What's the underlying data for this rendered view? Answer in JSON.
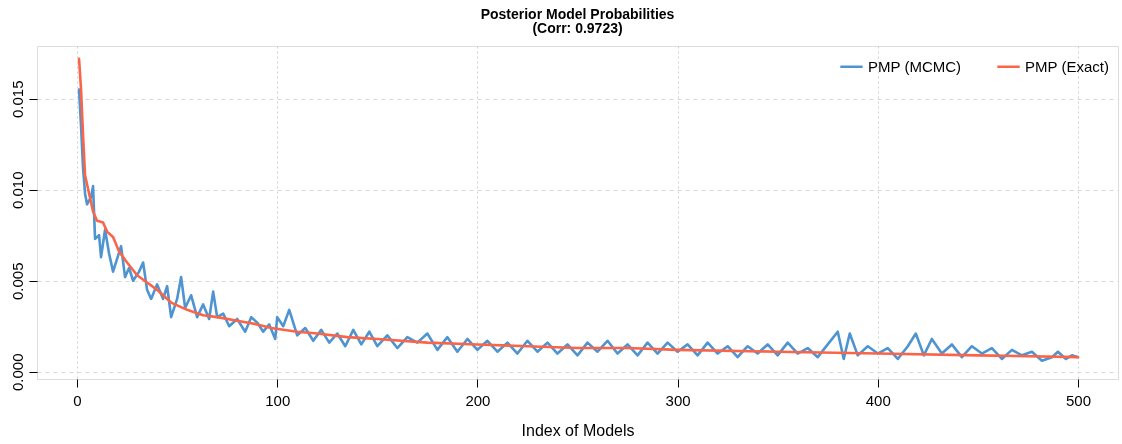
{
  "chart_data": {
    "type": "line",
    "title": "Posterior Model Probabilities",
    "subtitle": "(Corr: 0.9723)",
    "xlabel": "Index of Models",
    "xlim": [
      -20,
      520
    ],
    "xticks": [
      0,
      100,
      200,
      300,
      400,
      500
    ],
    "ylim": [
      -0.0004,
      0.0179
    ],
    "yticks": [
      {
        "value": 0,
        "label": "0.000"
      },
      0.005,
      {
        "value": 0.01,
        "label": "0.010"
      },
      0.015
    ],
    "grid": true,
    "legend": "top right",
    "line_style": "solid",
    "marker": "none",
    "series": [
      {
        "name": "PMP (MCMC)",
        "color": "#4e94d0",
        "x": [
          1,
          2,
          3,
          4,
          5,
          7,
          8,
          9,
          11,
          12,
          14,
          16,
          18,
          20,
          22,
          24,
          26,
          28,
          31,
          33,
          35,
          37,
          40,
          43,
          45,
          47,
          50,
          52,
          54,
          57,
          60,
          63,
          66,
          68,
          70,
          73,
          76,
          80,
          84,
          87,
          90,
          93,
          96,
          99,
          100,
          103,
          106,
          110,
          114,
          118,
          122,
          126,
          130,
          134,
          138,
          142,
          146,
          150,
          155,
          160,
          165,
          170,
          175,
          180,
          185,
          190,
          195,
          200,
          205,
          210,
          215,
          220,
          225,
          230,
          235,
          240,
          245,
          250,
          255,
          260,
          265,
          270,
          275,
          280,
          285,
          290,
          295,
          300,
          305,
          310,
          315,
          320,
          325,
          330,
          335,
          340,
          345,
          350,
          355,
          360,
          365,
          370,
          375,
          380,
          383,
          386,
          390,
          395,
          400,
          405,
          410,
          415,
          419,
          423,
          427,
          432,
          437,
          442,
          447,
          452,
          457,
          462,
          467,
          472,
          477,
          482,
          487,
          490,
          494,
          497,
          500
        ],
        "values": [
          0.0155,
          0.0135,
          0.0112,
          0.0098,
          0.0092,
          0.0096,
          0.0102,
          0.0073,
          0.0075,
          0.0063,
          0.0078,
          0.0065,
          0.0055,
          0.0062,
          0.0069,
          0.0052,
          0.0057,
          0.005,
          0.0055,
          0.006,
          0.0045,
          0.004,
          0.0048,
          0.004,
          0.0047,
          0.003,
          0.004,
          0.0052,
          0.0035,
          0.0042,
          0.003,
          0.0037,
          0.0029,
          0.0044,
          0.003,
          0.0032,
          0.0025,
          0.0029,
          0.0022,
          0.003,
          0.0027,
          0.0022,
          0.0026,
          0.0018,
          0.003,
          0.0025,
          0.0034,
          0.002,
          0.0024,
          0.0017,
          0.0023,
          0.0016,
          0.0021,
          0.0014,
          0.0023,
          0.0015,
          0.0022,
          0.0014,
          0.002,
          0.0013,
          0.0019,
          0.0016,
          0.0021,
          0.0012,
          0.0019,
          0.0011,
          0.0018,
          0.0012,
          0.0017,
          0.0011,
          0.0016,
          0.001,
          0.0017,
          0.0011,
          0.0016,
          0.001,
          0.0015,
          0.0009,
          0.0016,
          0.0011,
          0.0017,
          0.001,
          0.0015,
          0.0009,
          0.0016,
          0.001,
          0.0016,
          0.0011,
          0.0015,
          0.0009,
          0.0016,
          0.001,
          0.0014,
          0.0008,
          0.0014,
          0.001,
          0.0015,
          0.0009,
          0.0016,
          0.001,
          0.0013,
          0.0008,
          0.0015,
          0.0022,
          0.0007,
          0.0021,
          0.0009,
          0.0014,
          0.001,
          0.0013,
          0.0007,
          0.0014,
          0.0021,
          0.0009,
          0.0018,
          0.001,
          0.0015,
          0.0008,
          0.0014,
          0.001,
          0.0013,
          0.0007,
          0.0012,
          0.0009,
          0.0011,
          0.0006,
          0.0008,
          0.0011,
          0.0007,
          0.0009,
          0.0008
        ]
      },
      {
        "name": "PMP (Exact)",
        "color": "#fa6448",
        "x": [
          1,
          2,
          3,
          4,
          5,
          6,
          8,
          10,
          13,
          15,
          18,
          21,
          25,
          30,
          35,
          40,
          47,
          55,
          63,
          70,
          80,
          90,
          97,
          110,
          120,
          135,
          150,
          175,
          200,
          225,
          250,
          275,
          300,
          350,
          400,
          450,
          500
        ],
        "values": [
          0.0172,
          0.0155,
          0.013,
          0.0108,
          0.0103,
          0.0098,
          0.0088,
          0.0083,
          0.0082,
          0.0077,
          0.0074,
          0.0066,
          0.006,
          0.0053,
          0.0049,
          0.0045,
          0.0038,
          0.0034,
          0.0031,
          0.003,
          0.0028,
          0.0026,
          0.0024,
          0.0022,
          0.0021,
          0.0019,
          0.0018,
          0.0016,
          0.0015,
          0.0014,
          0.0013,
          0.0013,
          0.0012,
          0.0011,
          0.001,
          0.0009,
          0.0008
        ]
      }
    ]
  }
}
